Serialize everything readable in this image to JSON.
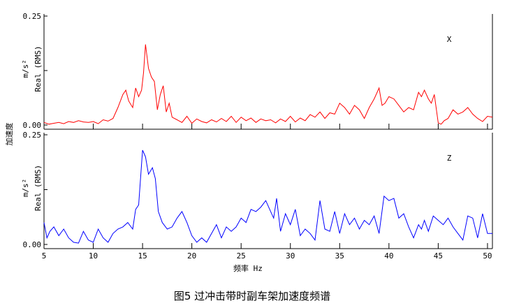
{
  "caption": "图5 过冲击带时副车架加速度频谱",
  "left_label": "加速度",
  "xlabel": "频率 Hz",
  "colors": {
    "x_series": "#ff0000",
    "z_series": "#0000ff"
  },
  "chart_data": [
    {
      "type": "line",
      "channel_label": "X",
      "ylabel_lines": [
        "m/s²",
        "Real (RMS)"
      ],
      "ylim": [
        0,
        0.25
      ],
      "ytick_labels": [
        "0.00",
        "0.25"
      ],
      "xlim": [
        5,
        50.5
      ],
      "xticks": [
        5,
        10,
        15,
        20,
        25,
        30,
        35,
        40,
        45,
        50
      ],
      "series": [
        {
          "color": "#ff0000",
          "x": [
            5,
            5.5,
            6,
            6.5,
            7,
            7.5,
            8,
            8.5,
            9,
            9.5,
            10,
            10.5,
            11,
            11.5,
            12,
            12.5,
            13,
            13.3,
            13.6,
            14,
            14.3,
            14.6,
            14.9,
            15.1,
            15.3,
            15.6,
            15.9,
            16.2,
            16.5,
            16.8,
            17.1,
            17.4,
            17.7,
            18,
            18.5,
            19,
            19.5,
            20,
            20.5,
            21,
            21.5,
            22,
            22.5,
            23,
            23.5,
            24,
            24.5,
            25,
            25.5,
            26,
            26.5,
            27,
            27.5,
            28,
            28.5,
            29,
            29.5,
            30,
            30.5,
            31,
            31.5,
            32,
            32.5,
            33,
            33.5,
            34,
            34.5,
            35,
            35.5,
            36,
            36.5,
            37,
            37.5,
            38,
            38.5,
            39,
            39.3,
            39.6,
            40,
            40.5,
            41,
            41.5,
            42,
            42.5,
            43,
            43.3,
            43.6,
            44,
            44.3,
            44.6,
            45,
            45.3,
            45.6,
            46,
            46.5,
            47,
            47.5,
            48,
            48.5,
            49,
            49.5,
            50,
            50.5
          ],
          "values": [
            0.006,
            0.002,
            0.004,
            0.006,
            0.003,
            0.008,
            0.006,
            0.01,
            0.007,
            0.006,
            0.008,
            0.003,
            0.012,
            0.009,
            0.015,
            0.04,
            0.07,
            0.08,
            0.055,
            0.04,
            0.085,
            0.065,
            0.08,
            0.12,
            0.185,
            0.13,
            0.11,
            0.1,
            0.035,
            0.07,
            0.09,
            0.03,
            0.05,
            0.018,
            0.012,
            0.006,
            0.02,
            0.004,
            0.014,
            0.008,
            0.005,
            0.012,
            0.007,
            0.015,
            0.008,
            0.02,
            0.006,
            0.018,
            0.01,
            0.016,
            0.006,
            0.014,
            0.01,
            0.012,
            0.005,
            0.014,
            0.008,
            0.02,
            0.007,
            0.016,
            0.01,
            0.024,
            0.018,
            0.03,
            0.015,
            0.028,
            0.025,
            0.05,
            0.04,
            0.025,
            0.045,
            0.035,
            0.015,
            0.04,
            0.06,
            0.085,
            0.045,
            0.05,
            0.065,
            0.06,
            0.045,
            0.03,
            0.04,
            0.035,
            0.075,
            0.065,
            0.08,
            0.06,
            0.05,
            0.07,
            0.005,
            0.002,
            0.01,
            0.015,
            0.035,
            0.025,
            0.03,
            0.04,
            0.025,
            0.015,
            0.008,
            0.02,
            0.018
          ]
        }
      ]
    },
    {
      "type": "line",
      "channel_label": "Z",
      "ylabel_lines": [
        "m/s²",
        "Real (RMS)"
      ],
      "ylim": [
        0,
        0.25
      ],
      "ytick_labels": [
        "0.00",
        "0.25"
      ],
      "xlim": [
        5,
        50.5
      ],
      "xticks": [
        5,
        10,
        15,
        20,
        25,
        30,
        35,
        40,
        45,
        50
      ],
      "series": [
        {
          "color": "#0000ff",
          "x": [
            5,
            5.3,
            5.6,
            6,
            6.5,
            7,
            7.5,
            8,
            8.5,
            9,
            9.5,
            10,
            10.5,
            11,
            11.5,
            12,
            12.5,
            13,
            13.5,
            14,
            14.3,
            14.6,
            15,
            15.3,
            15.6,
            16,
            16.3,
            16.6,
            17,
            17.5,
            18,
            18.5,
            19,
            19.5,
            20,
            20.5,
            21,
            21.5,
            22,
            22.5,
            23,
            23.5,
            24,
            24.5,
            25,
            25.5,
            26,
            26.5,
            27,
            27.5,
            28,
            28.3,
            28.6,
            29,
            29.5,
            30,
            30.5,
            31,
            31.5,
            32,
            32.5,
            33,
            33.5,
            34,
            34.5,
            35,
            35.5,
            36,
            36.5,
            37,
            37.5,
            38,
            38.5,
            39,
            39.5,
            40,
            40.5,
            41,
            41.5,
            42,
            42.5,
            43,
            43.3,
            43.6,
            44,
            44.5,
            45,
            45.5,
            46,
            46.5,
            47,
            47.5,
            48,
            48.5,
            49,
            49.5,
            50,
            50.5
          ],
          "values": [
            0.05,
            0.015,
            0.03,
            0.04,
            0.02,
            0.035,
            0.015,
            0.005,
            0.003,
            0.03,
            0.01,
            0.005,
            0.035,
            0.015,
            0.005,
            0.025,
            0.035,
            0.04,
            0.05,
            0.035,
            0.08,
            0.09,
            0.215,
            0.2,
            0.16,
            0.175,
            0.15,
            0.075,
            0.05,
            0.035,
            0.04,
            0.06,
            0.075,
            0.05,
            0.02,
            0.005,
            0.015,
            0.005,
            0.025,
            0.045,
            0.015,
            0.04,
            0.03,
            0.04,
            0.06,
            0.05,
            0.08,
            0.075,
            0.085,
            0.1,
            0.075,
            0.06,
            0.105,
            0.03,
            0.07,
            0.045,
            0.08,
            0.02,
            0.035,
            0.025,
            0.01,
            0.1,
            0.035,
            0.03,
            0.075,
            0.025,
            0.07,
            0.045,
            0.06,
            0.035,
            0.055,
            0.045,
            0.065,
            0.025,
            0.11,
            0.1,
            0.105,
            0.06,
            0.07,
            0.04,
            0.015,
            0.045,
            0.035,
            0.055,
            0.03,
            0.065,
            0.055,
            0.045,
            0.06,
            0.04,
            0.025,
            0.01,
            0.065,
            0.06,
            0.015,
            0.07,
            0.025,
            0.025
          ]
        }
      ]
    }
  ]
}
